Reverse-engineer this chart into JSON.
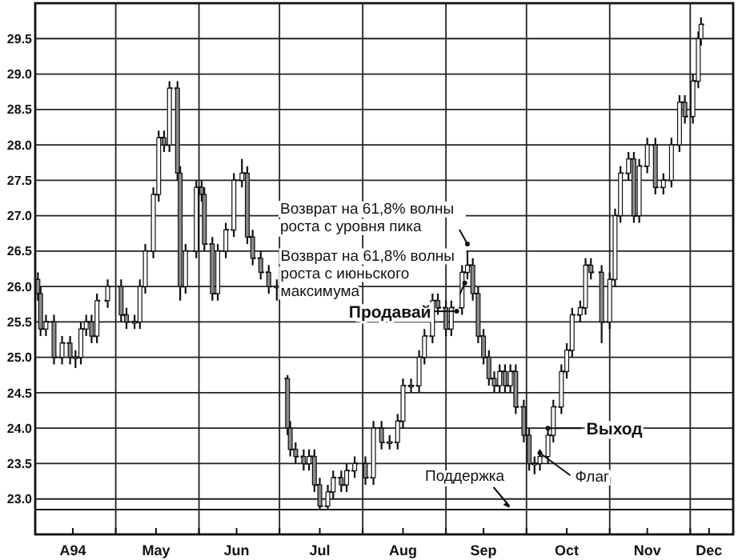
{
  "chart_data": {
    "type": "candlestick",
    "color": "#111111",
    "x": [
      "1994-04-02",
      "1994-04-03",
      "1994-04-05",
      "1994-04-08",
      "1994-04-11",
      "1994-04-14",
      "1994-04-16",
      "1994-04-18",
      "1994-04-20",
      "1994-04-22",
      "1994-04-24",
      "1994-04-28",
      "1994-05-03",
      "1994-05-05",
      "1994-05-08",
      "1994-05-10",
      "1994-05-12",
      "1994-05-15",
      "1994-05-17",
      "1994-05-19",
      "1994-05-21",
      "1994-05-24",
      "1994-05-25",
      "1994-05-27",
      "1994-05-31",
      "1994-06-02",
      "1994-06-03",
      "1994-06-06",
      "1994-06-08",
      "1994-06-11",
      "1994-06-14",
      "1994-06-17",
      "1994-06-19",
      "1994-06-21",
      "1994-06-24",
      "1994-06-27",
      "1994-06-30",
      "1994-07-04",
      "1994-07-05",
      "1994-07-07",
      "1994-07-10",
      "1994-07-12",
      "1994-07-14",
      "1994-07-16",
      "1994-07-19",
      "1994-07-21",
      "1994-07-24",
      "1994-07-26",
      "1994-07-29",
      "1994-08-02",
      "1994-08-05",
      "1994-08-08",
      "1994-08-11",
      "1994-08-14",
      "1994-08-16",
      "1994-08-19",
      "1994-08-22",
      "1994-08-24",
      "1994-08-27",
      "1994-08-29",
      "1994-09-01",
      "1994-09-03",
      "1994-09-07",
      "1994-09-09",
      "1994-09-11",
      "1994-09-13",
      "1994-09-15",
      "1994-09-17",
      "1994-09-19",
      "1994-09-21",
      "1994-09-23",
      "1994-09-25",
      "1994-09-27",
      "1994-09-30",
      "1994-10-02",
      "1994-10-04",
      "1994-10-06",
      "1994-10-09",
      "1994-10-11",
      "1994-10-14",
      "1994-10-16",
      "1994-10-18",
      "1994-10-21",
      "1994-10-23",
      "1994-10-25",
      "1994-10-29",
      "1994-11-01",
      "1994-11-03",
      "1994-11-05",
      "1994-11-08",
      "1994-11-10",
      "1994-11-12",
      "1994-11-15",
      "1994-11-18",
      "1994-11-21",
      "1994-11-24",
      "1994-11-27",
      "1994-11-29",
      "1994-12-02",
      "1994-12-04",
      "1994-12-05"
    ],
    "ohlc": [
      [
        26.1,
        26.2,
        25.8,
        25.9
      ],
      [
        25.9,
        26.0,
        25.3,
        25.4
      ],
      [
        25.4,
        25.6,
        25.3,
        25.5
      ],
      [
        25.5,
        25.6,
        24.9,
        25.0
      ],
      [
        25.0,
        25.3,
        24.9,
        25.2
      ],
      [
        25.2,
        25.3,
        24.9,
        25.0
      ],
      [
        25.0,
        25.1,
        24.85,
        25.0
      ],
      [
        25.0,
        25.5,
        24.9,
        25.4
      ],
      [
        25.4,
        25.6,
        25.3,
        25.5
      ],
      [
        25.5,
        25.6,
        25.2,
        25.3
      ],
      [
        25.3,
        25.9,
        25.2,
        25.8
      ],
      [
        25.8,
        26.1,
        25.7,
        26.0
      ],
      [
        26.0,
        26.1,
        25.5,
        25.6
      ],
      [
        25.6,
        25.7,
        25.4,
        25.5
      ],
      [
        25.5,
        25.6,
        25.4,
        25.5
      ],
      [
        25.5,
        26.1,
        25.4,
        26.0
      ],
      [
        26.0,
        26.6,
        25.9,
        26.5
      ],
      [
        26.5,
        27.4,
        26.4,
        27.3
      ],
      [
        27.3,
        28.2,
        27.2,
        28.1
      ],
      [
        28.1,
        28.2,
        27.9,
        28.0
      ],
      [
        28.0,
        28.9,
        27.9,
        28.8
      ],
      [
        28.8,
        28.9,
        27.5,
        27.6
      ],
      [
        27.6,
        27.7,
        25.8,
        26.0
      ],
      [
        26.0,
        26.6,
        25.9,
        26.5
      ],
      [
        26.5,
        27.5,
        26.4,
        27.4
      ],
      [
        27.4,
        27.5,
        27.2,
        27.3
      ],
      [
        27.3,
        27.4,
        26.5,
        26.6
      ],
      [
        26.6,
        26.7,
        25.8,
        25.9
      ],
      [
        25.9,
        26.6,
        25.8,
        26.5
      ],
      [
        26.5,
        26.9,
        26.4,
        26.8
      ],
      [
        26.8,
        27.6,
        26.7,
        27.5
      ],
      [
        27.5,
        27.8,
        27.4,
        27.6
      ],
      [
        27.6,
        27.7,
        26.6,
        26.7
      ],
      [
        26.7,
        26.8,
        26.3,
        26.4
      ],
      [
        26.4,
        26.5,
        26.1,
        26.2
      ],
      [
        26.2,
        26.3,
        25.9,
        26.0
      ],
      [
        26.0,
        26.1,
        25.8,
        26.0
      ],
      [
        24.7,
        24.75,
        23.9,
        24.0
      ],
      [
        24.0,
        24.1,
        23.6,
        23.7
      ],
      [
        23.7,
        23.8,
        23.5,
        23.6
      ],
      [
        23.6,
        23.7,
        23.4,
        23.5
      ],
      [
        23.5,
        23.7,
        23.4,
        23.6
      ],
      [
        23.6,
        23.7,
        23.1,
        23.2
      ],
      [
        23.2,
        23.3,
        22.85,
        22.9
      ],
      [
        22.9,
        23.2,
        22.85,
        23.1
      ],
      [
        23.1,
        23.4,
        23.0,
        23.3
      ],
      [
        23.3,
        23.4,
        23.1,
        23.2
      ],
      [
        23.2,
        23.5,
        23.1,
        23.4
      ],
      [
        23.4,
        23.6,
        23.3,
        23.5
      ],
      [
        23.5,
        23.6,
        23.2,
        23.3
      ],
      [
        23.3,
        24.1,
        23.2,
        24.0
      ],
      [
        24.0,
        24.1,
        23.7,
        23.8
      ],
      [
        23.8,
        23.9,
        23.7,
        23.8
      ],
      [
        23.8,
        24.2,
        23.7,
        24.1
      ],
      [
        24.1,
        24.7,
        24.0,
        24.6
      ],
      [
        24.6,
        24.7,
        24.5,
        24.6
      ],
      [
        24.6,
        25.1,
        24.5,
        25.0
      ],
      [
        25.0,
        25.4,
        24.9,
        25.3
      ],
      [
        25.3,
        25.9,
        25.2,
        25.8
      ],
      [
        25.8,
        25.9,
        25.6,
        25.7
      ],
      [
        25.7,
        25.8,
        25.3,
        25.4
      ],
      [
        25.4,
        25.8,
        25.3,
        25.7
      ],
      [
        25.7,
        26.3,
        25.6,
        26.2
      ],
      [
        26.2,
        26.5,
        26.1,
        26.3
      ],
      [
        26.3,
        26.4,
        25.8,
        25.9
      ],
      [
        25.9,
        26.0,
        25.2,
        25.3
      ],
      [
        25.3,
        25.4,
        24.9,
        25.0
      ],
      [
        25.0,
        25.1,
        24.6,
        24.7
      ],
      [
        24.7,
        24.8,
        24.5,
        24.6
      ],
      [
        24.6,
        24.9,
        24.5,
        24.8
      ],
      [
        24.8,
        24.9,
        24.5,
        24.6
      ],
      [
        24.6,
        24.9,
        24.5,
        24.8
      ],
      [
        24.8,
        24.9,
        24.2,
        24.3
      ],
      [
        24.3,
        24.4,
        23.8,
        23.9
      ],
      [
        23.9,
        24.0,
        23.4,
        23.5
      ],
      [
        23.5,
        23.6,
        23.35,
        23.5
      ],
      [
        23.5,
        23.7,
        23.4,
        23.6
      ],
      [
        23.6,
        24.0,
        23.5,
        23.9
      ],
      [
        23.9,
        24.4,
        23.8,
        24.3
      ],
      [
        24.3,
        24.9,
        24.2,
        24.8
      ],
      [
        24.8,
        25.2,
        24.7,
        25.1
      ],
      [
        25.1,
        25.7,
        25.0,
        25.6
      ],
      [
        25.6,
        25.8,
        25.5,
        25.7
      ],
      [
        25.7,
        26.4,
        25.6,
        26.3
      ],
      [
        26.3,
        26.4,
        26.1,
        26.2
      ],
      [
        26.2,
        26.3,
        25.2,
        25.5
      ],
      [
        25.5,
        26.2,
        25.4,
        26.1
      ],
      [
        26.1,
        27.1,
        26.0,
        27.0
      ],
      [
        27.0,
        27.7,
        26.9,
        27.6
      ],
      [
        27.6,
        27.9,
        27.5,
        27.8
      ],
      [
        27.8,
        27.9,
        26.9,
        27.0
      ],
      [
        27.0,
        27.8,
        26.9,
        27.7
      ],
      [
        27.7,
        28.1,
        27.6,
        28.0
      ],
      [
        28.0,
        28.1,
        27.3,
        27.4
      ],
      [
        27.4,
        27.6,
        27.3,
        27.5
      ],
      [
        27.5,
        28.1,
        27.4,
        28.0
      ],
      [
        28.0,
        28.7,
        27.9,
        28.6
      ],
      [
        28.6,
        28.7,
        28.3,
        28.4
      ],
      [
        28.4,
        29.0,
        28.3,
        28.9
      ],
      [
        28.9,
        29.6,
        28.8,
        29.5
      ],
      [
        29.5,
        29.8,
        29.4,
        29.7
      ]
    ],
    "xlim": [
      "1994-04-01",
      "1994-12-17"
    ],
    "xticks": [
      {
        "value": "1994-04-15",
        "label": "A94"
      },
      {
        "value": "1994-05-01",
        "label": null
      },
      {
        "value": "1994-05-16",
        "label": "May"
      },
      {
        "value": "1994-06-01",
        "label": null
      },
      {
        "value": "1994-06-15",
        "label": "Jun"
      },
      {
        "value": "1994-07-01",
        "label": null
      },
      {
        "value": "1994-07-16",
        "label": "Jul"
      },
      {
        "value": "1994-08-01",
        "label": null
      },
      {
        "value": "1994-08-16",
        "label": "Aug"
      },
      {
        "value": "1994-09-01",
        "label": null
      },
      {
        "value": "1994-09-15",
        "label": "Sep"
      },
      {
        "value": "1994-10-01",
        "label": null
      },
      {
        "value": "1994-10-16",
        "label": "Oct"
      },
      {
        "value": "1994-11-01",
        "label": null
      },
      {
        "value": "1994-11-15",
        "label": "Nov"
      },
      {
        "value": "1994-12-01",
        "label": null
      },
      {
        "value": "1994-12-08",
        "label": "Dec"
      }
    ],
    "ylim": [
      22.5,
      30.0
    ],
    "yticks": [
      {
        "value": 23,
        "label": "23.0"
      },
      {
        "value": 23.5,
        "label": "23.5"
      },
      {
        "value": 24,
        "label": "24.0"
      },
      {
        "value": 24.5,
        "label": "24.5"
      },
      {
        "value": 25,
        "label": "25.0"
      },
      {
        "value": 25.5,
        "label": "25.5"
      },
      {
        "value": 26,
        "label": "26.0"
      },
      {
        "value": 26.5,
        "label": "26.5"
      },
      {
        "value": 27,
        "label": "27.0"
      },
      {
        "value": 27.5,
        "label": "27.5"
      },
      {
        "value": 28,
        "label": "28.0"
      },
      {
        "value": 28.5,
        "label": "28.5"
      },
      {
        "value": 29,
        "label": "29.0"
      },
      {
        "value": 29.5,
        "label": "29.5"
      }
    ],
    "grid": true,
    "ref_lines": [
      {
        "axis": "y",
        "value": 22.85,
        "label": "Поддержка"
      }
    ],
    "annotations": [
      {
        "text": "Возврат на 61,8% волны роста с уровня пика",
        "x": "1994-09-09",
        "y": 26.6
      },
      {
        "text": "Возврат на 61,8% волны роста с июньского максимума",
        "x": "1994-09-08",
        "y": 26.05
      },
      {
        "text": "Продавай",
        "x": "1994-09-05",
        "y": 25.65
      },
      {
        "text": "Выход",
        "x": "1994-10-09",
        "y": 24.0
      },
      {
        "text": "Флаг",
        "x": "1994-10-06",
        "y": 23.65
      }
    ]
  }
}
